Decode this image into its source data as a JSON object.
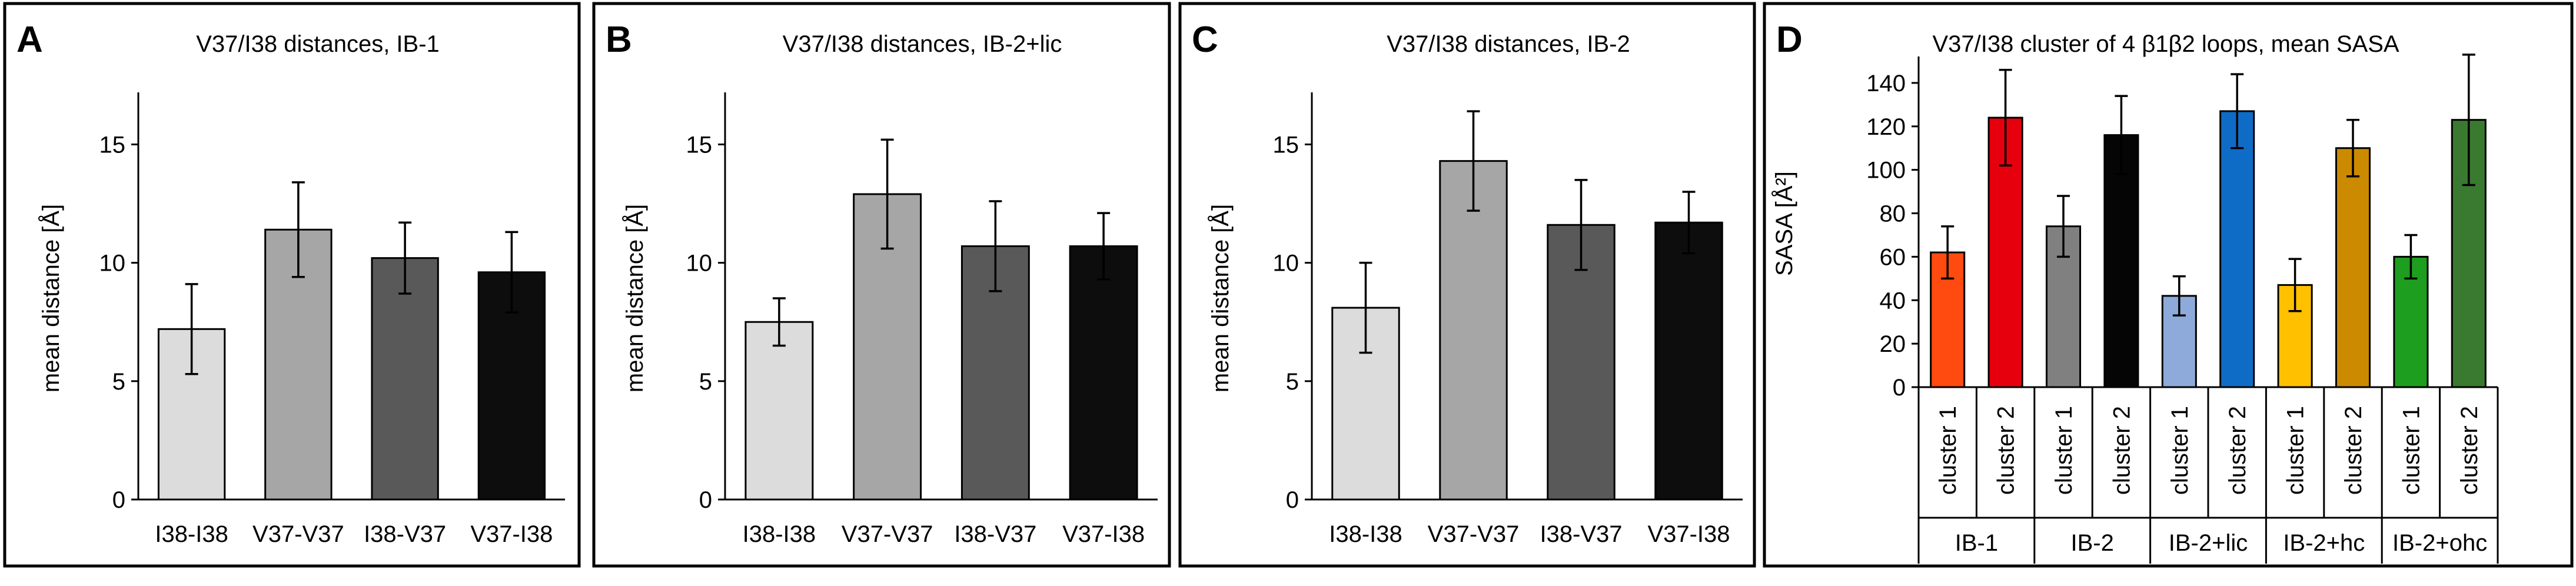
{
  "chart_data": [
    {
      "panel": "A",
      "type": "bar",
      "title": "V37/I38 distances, IB-1",
      "ylabel": "mean distance [Å]",
      "ylim": [
        0,
        17
      ],
      "yticks": [
        0,
        5,
        10,
        15
      ],
      "categories": [
        "I38-I38",
        "V37-V37",
        "I38-V37",
        "V37-I38"
      ],
      "values": [
        7.2,
        11.4,
        10.2,
        9.6
      ],
      "errors": [
        1.9,
        2.0,
        1.5,
        1.7
      ],
      "colors": [
        "#dcdcdc",
        "#a6a6a6",
        "#595959",
        "#0d0d0d"
      ]
    },
    {
      "panel": "B",
      "type": "bar",
      "title": "V37/I38 distances, IB-2+lic",
      "ylabel": "mean distance [Å]",
      "ylim": [
        0,
        17
      ],
      "yticks": [
        0,
        5,
        10,
        15
      ],
      "categories": [
        "I38-I38",
        "V37-V37",
        "I38-V37",
        "V37-I38"
      ],
      "values": [
        7.5,
        12.9,
        10.7,
        10.7
      ],
      "errors": [
        1.0,
        2.3,
        1.9,
        1.4
      ],
      "colors": [
        "#dcdcdc",
        "#a6a6a6",
        "#595959",
        "#0d0d0d"
      ]
    },
    {
      "panel": "C",
      "type": "bar",
      "title": "V37/I38 distances, IB-2",
      "ylabel": "mean distance [Å]",
      "ylim": [
        0,
        17
      ],
      "yticks": [
        0,
        5,
        10,
        15
      ],
      "categories": [
        "I38-I38",
        "V37-V37",
        "I38-V37",
        "V37-I38"
      ],
      "values": [
        8.1,
        14.3,
        11.6,
        11.7
      ],
      "errors": [
        1.9,
        2.1,
        1.9,
        1.3
      ],
      "colors": [
        "#dcdcdc",
        "#a6a6a6",
        "#595959",
        "#0d0d0d"
      ]
    },
    {
      "panel": "D",
      "type": "bar",
      "title": "V37/I38 cluster of 4 β1β2 loops, mean SASA",
      "ylabel": "SASA [Å²]",
      "ylim": [
        0,
        150
      ],
      "yticks": [
        0,
        20,
        40,
        60,
        80,
        100,
        120,
        140
      ],
      "categories": [
        "cluster 1",
        "cluster 2",
        "cluster 1",
        "cluster 2",
        "cluster 1",
        "cluster 2",
        "cluster 1",
        "cluster 2",
        "cluster 1",
        "cluster 2"
      ],
      "groups": [
        "IB-1",
        "IB-2",
        "IB-2+lic",
        "IB-2+hc",
        "IB-2+ohc"
      ],
      "values": [
        62,
        124,
        74,
        116,
        42,
        127,
        47,
        110,
        60,
        123
      ],
      "errors": [
        12,
        22,
        14,
        18,
        9,
        17,
        12,
        13,
        10,
        30
      ],
      "colors": [
        "#ff4a10",
        "#e6000d",
        "#808080",
        "#050505",
        "#8eaadb",
        "#0f6cc6",
        "#ffc000",
        "#cc8a00",
        "#1e9e1e",
        "#3a7a30"
      ]
    }
  ]
}
